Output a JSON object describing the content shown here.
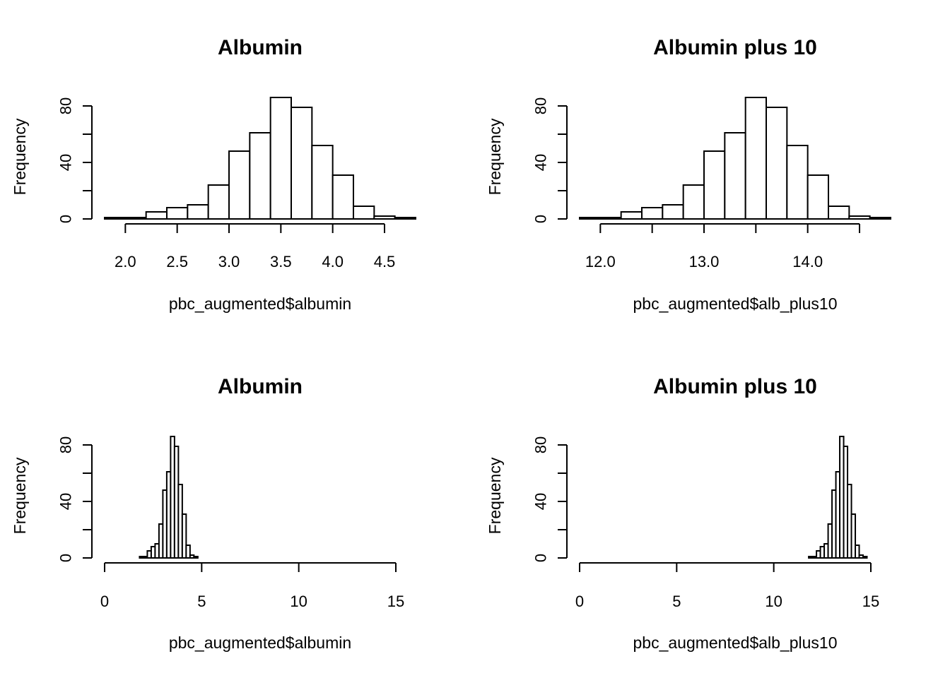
{
  "chart_data": [
    {
      "type": "bar",
      "subtype": "histogram",
      "title": "Albumin",
      "xlabel": "pbc_augmented$albumin",
      "ylabel": "Frequency",
      "bin_edges": [
        1.8,
        2.0,
        2.2,
        2.4,
        2.6,
        2.8,
        3.0,
        3.2,
        3.4,
        3.6,
        3.8,
        4.0,
        4.2,
        4.4,
        4.6,
        4.8
      ],
      "values": [
        1,
        1,
        5,
        8,
        10,
        24,
        48,
        61,
        86,
        79,
        52,
        31,
        9,
        2,
        1
      ],
      "xlim": [
        1.8,
        4.8
      ],
      "ylim": [
        0,
        86
      ],
      "x_ticks": [
        2.0,
        2.5,
        3.0,
        3.5,
        4.0,
        4.5
      ],
      "x_tick_labels": [
        "2.0",
        "2.5",
        "3.0",
        "3.5",
        "4.0",
        "4.5"
      ],
      "y_ticks": [
        0,
        20,
        40,
        60,
        80
      ],
      "y_tick_labels": [
        "0",
        "",
        "40",
        "",
        "80"
      ],
      "grid": false
    },
    {
      "type": "bar",
      "subtype": "histogram",
      "title": "Albumin plus 10",
      "xlabel": "pbc_augmented$alb_plus10",
      "ylabel": "Frequency",
      "bin_edges": [
        11.8,
        12.0,
        12.2,
        12.4,
        12.6,
        12.8,
        13.0,
        13.2,
        13.4,
        13.6,
        13.8,
        14.0,
        14.2,
        14.4,
        14.6,
        14.8
      ],
      "values": [
        1,
        1,
        5,
        8,
        10,
        24,
        48,
        61,
        86,
        79,
        52,
        31,
        9,
        2,
        1
      ],
      "xlim": [
        11.8,
        14.8
      ],
      "ylim": [
        0,
        86
      ],
      "x_ticks": [
        12.0,
        12.5,
        13.0,
        13.5,
        14.0,
        14.5
      ],
      "x_tick_labels": [
        "12.0",
        "",
        "13.0",
        "",
        "14.0",
        ""
      ],
      "y_ticks": [
        0,
        20,
        40,
        60,
        80
      ],
      "y_tick_labels": [
        "0",
        "",
        "40",
        "",
        "80"
      ],
      "grid": false
    },
    {
      "type": "bar",
      "subtype": "histogram",
      "title": "Albumin",
      "xlabel": "pbc_augmented$albumin",
      "ylabel": "Frequency",
      "bin_edges": [
        1.8,
        2.0,
        2.2,
        2.4,
        2.6,
        2.8,
        3.0,
        3.2,
        3.4,
        3.6,
        3.8,
        4.0,
        4.2,
        4.4,
        4.6,
        4.8
      ],
      "values": [
        1,
        1,
        5,
        8,
        10,
        24,
        48,
        61,
        86,
        79,
        52,
        31,
        9,
        2,
        1
      ],
      "xlim": [
        0,
        15
      ],
      "ylim": [
        0,
        86
      ],
      "x_ticks": [
        0,
        5,
        10,
        15
      ],
      "x_tick_labels": [
        "0",
        "5",
        "10",
        "15"
      ],
      "y_ticks": [
        0,
        20,
        40,
        60,
        80
      ],
      "y_tick_labels": [
        "0",
        "",
        "40",
        "",
        "80"
      ],
      "grid": false
    },
    {
      "type": "bar",
      "subtype": "histogram",
      "title": "Albumin plus 10",
      "xlabel": "pbc_augmented$alb_plus10",
      "ylabel": "Frequency",
      "bin_edges": [
        11.8,
        12.0,
        12.2,
        12.4,
        12.6,
        12.8,
        13.0,
        13.2,
        13.4,
        13.6,
        13.8,
        14.0,
        14.2,
        14.4,
        14.6,
        14.8
      ],
      "values": [
        1,
        1,
        5,
        8,
        10,
        24,
        48,
        61,
        86,
        79,
        52,
        31,
        9,
        2,
        1
      ],
      "xlim": [
        0,
        15
      ],
      "ylim": [
        0,
        86
      ],
      "x_ticks": [
        0,
        5,
        10,
        15
      ],
      "x_tick_labels": [
        "0",
        "5",
        "10",
        "15"
      ],
      "y_ticks": [
        0,
        20,
        40,
        60,
        80
      ],
      "y_tick_labels": [
        "0",
        "",
        "40",
        "",
        "80"
      ],
      "grid": false
    }
  ]
}
